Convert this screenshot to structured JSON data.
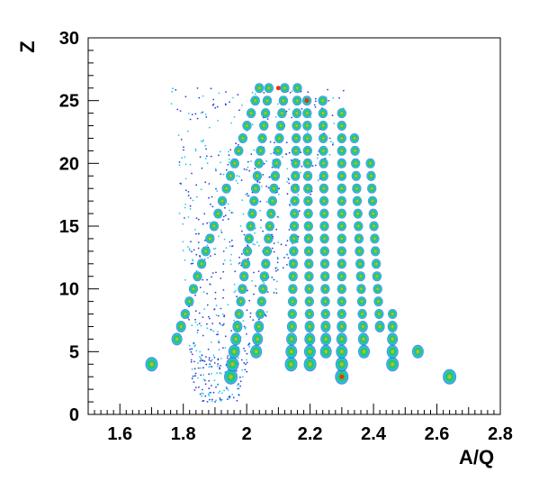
{
  "chart_data": {
    "type": "scatter",
    "title": "",
    "xlabel": "A/Q",
    "ylabel": "Z",
    "xlim": [
      1.5,
      2.8
    ],
    "ylim": [
      0,
      30
    ],
    "x_ticks": [
      "1.6",
      "1.8",
      "2",
      "2.2",
      "2.4",
      "2.6",
      "2.8"
    ],
    "y_ticks": [
      "0",
      "5",
      "10",
      "15",
      "20",
      "25",
      "30"
    ],
    "grid": false,
    "colors": {
      "low": "#2a3fd8",
      "low_mid": "#22c9e8",
      "mid": "#23c35a",
      "high": "#f0c020",
      "max": "#e83018"
    },
    "series": [
      {
        "x_start": 1.7,
        "x_end": 1.7,
        "z_start": 4,
        "z_end": 4
      },
      {
        "x_start": 1.78,
        "x_end": 2.04,
        "z_start": 6,
        "z_end": 26
      },
      {
        "x_start": 1.95,
        "x_end": 2.07,
        "z_start": 3,
        "z_end": 26
      },
      {
        "x_start": 2.03,
        "x_end": 2.12,
        "z_start": 5,
        "z_end": 26
      },
      {
        "x_start": 2.14,
        "x_end": 2.16,
        "z_start": 4,
        "z_end": 26
      },
      {
        "x_start": 2.2,
        "x_end": 2.19,
        "z_start": 4,
        "z_end": 25
      },
      {
        "x_start": 2.25,
        "x_end": 2.24,
        "z_start": 5,
        "z_end": 25
      },
      {
        "x_start": 2.3,
        "x_end": 2.3,
        "z_start": 3,
        "z_end": 24
      },
      {
        "x_start": 2.37,
        "x_end": 2.34,
        "z_start": 5,
        "z_end": 22
      },
      {
        "x_start": 2.42,
        "x_end": 2.39,
        "z_start": 7,
        "z_end": 20
      },
      {
        "x_start": 2.46,
        "x_end": 2.46,
        "z_start": 4,
        "z_end": 8
      },
      {
        "x_start": 2.54,
        "x_end": 2.54,
        "z_start": 5,
        "z_end": 5
      },
      {
        "x_start": 2.64,
        "x_end": 2.64,
        "z_start": 3,
        "z_end": 3
      }
    ],
    "hot_spots": [
      {
        "x": 2.1,
        "z": 26
      },
      {
        "x": 2.19,
        "z": 25
      },
      {
        "x": 2.3,
        "z": 3
      }
    ]
  }
}
